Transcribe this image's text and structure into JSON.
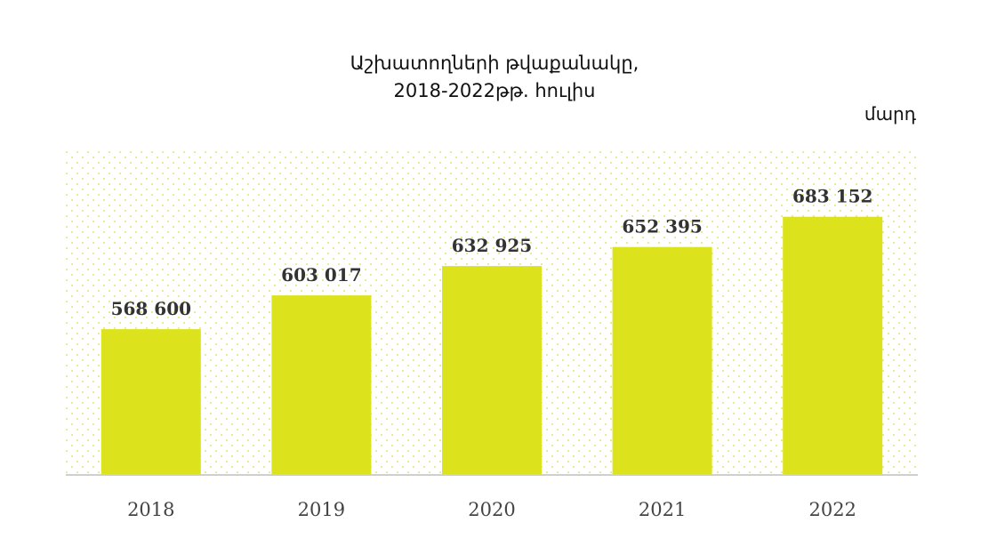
{
  "header": {
    "title_line1": "Աշխատողների թվաքանակը,",
    "title_line2": "2018-2022թթ. հուլիս",
    "unit": "մարդ"
  },
  "chart_data": {
    "type": "bar",
    "title": "Աշխատողների թվաքանակը, 2018-2022թթ. հուլիս",
    "unit_label": "մարդ",
    "categories": [
      "2018",
      "2019",
      "2020",
      "2021",
      "2022"
    ],
    "values": [
      568600,
      603017,
      632925,
      652395,
      683152
    ],
    "value_labels": [
      "568 600",
      "603 017",
      "632 925",
      "652 395",
      "683 152"
    ],
    "ylim": [
      420000,
      750000
    ],
    "grid": false,
    "bar_color": "#dce21c",
    "background_pattern_color": "#e8eb9a"
  }
}
